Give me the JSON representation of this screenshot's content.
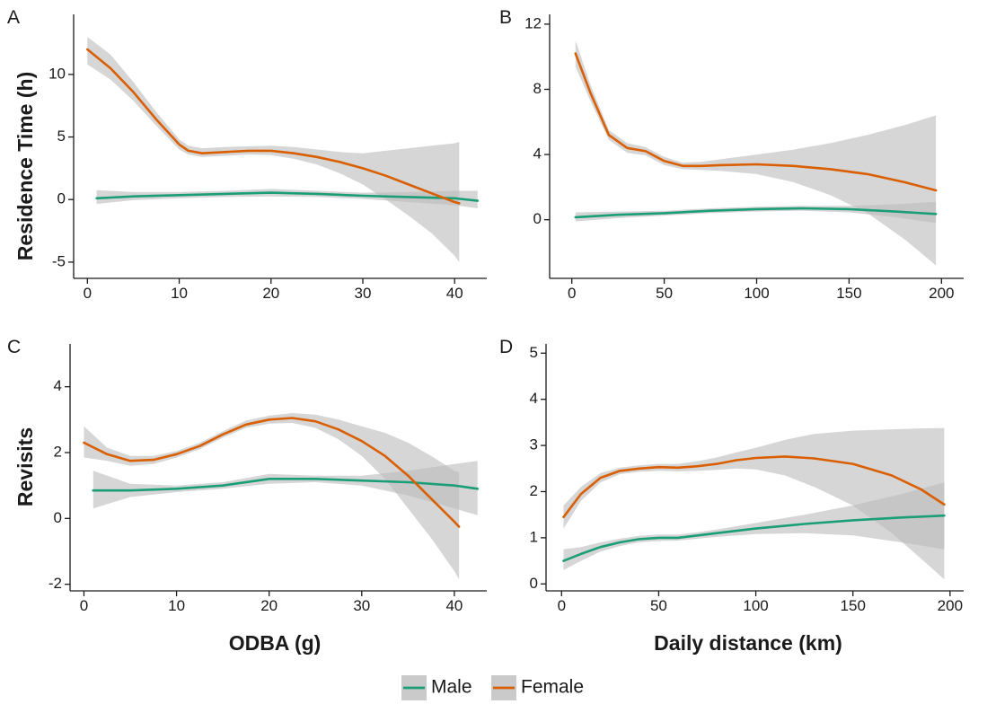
{
  "colors": {
    "male": "#1b9e77",
    "female": "#d95f02",
    "band": "#bdbdbd"
  },
  "legend": {
    "entries": [
      {
        "label": "Male",
        "color": "#1b9e77"
      },
      {
        "label": "Female",
        "color": "#d95f02"
      }
    ]
  },
  "labels": {
    "ylabel_top": "Residence Time (h)",
    "ylabel_bottom": "Revisits",
    "xlabel_left": "ODBA (g)",
    "xlabel_right": "Daily distance (km)"
  },
  "chart_data": [
    {
      "type": "line",
      "panel": "A",
      "xlim": [
        -1.5,
        43.5
      ],
      "ylim": [
        -6.3,
        14.8
      ],
      "xticks": [
        0,
        10,
        20,
        30,
        40
      ],
      "yticks": [
        -5,
        0,
        5,
        10
      ],
      "series": [
        {
          "name": "Male",
          "color": "#1b9e77",
          "x": [
            1,
            5,
            10,
            15,
            20,
            25,
            30,
            35,
            40,
            42.5
          ],
          "y": [
            0.1,
            0.25,
            0.35,
            0.45,
            0.55,
            0.45,
            0.3,
            0.2,
            0.1,
            -0.1
          ],
          "lower": [
            -0.35,
            -0.05,
            0.1,
            0.2,
            0.25,
            0.2,
            0.05,
            -0.2,
            -0.45,
            -0.7
          ],
          "upper": [
            0.75,
            0.6,
            0.6,
            0.7,
            0.85,
            0.7,
            0.55,
            0.6,
            0.7,
            0.7
          ]
        },
        {
          "name": "Female",
          "color": "#d95f02",
          "x": [
            0,
            2.5,
            5,
            7.5,
            10,
            11,
            12.5,
            15,
            17.5,
            20,
            22.5,
            25,
            27.5,
            30,
            32.5,
            35,
            37.5,
            40,
            40.5
          ],
          "y": [
            12,
            10.5,
            8.6,
            6.4,
            4.4,
            3.9,
            3.7,
            3.8,
            3.9,
            3.9,
            3.7,
            3.4,
            3.0,
            2.5,
            1.9,
            1.2,
            0.5,
            -0.2,
            -0.3
          ],
          "lower": [
            10.8,
            9.6,
            7.9,
            5.9,
            4.0,
            3.6,
            3.4,
            3.5,
            3.6,
            3.55,
            3.25,
            2.8,
            2.1,
            1.2,
            0.0,
            -1.3,
            -2.7,
            -4.5,
            -5.0
          ],
          "upper": [
            13.0,
            11.6,
            9.4,
            7.0,
            4.8,
            4.3,
            4.1,
            4.2,
            4.25,
            4.3,
            4.2,
            4.0,
            3.8,
            3.7,
            3.9,
            4.1,
            4.3,
            4.5,
            4.6
          ]
        }
      ]
    },
    {
      "type": "line",
      "panel": "B",
      "xlim": [
        -12,
        212
      ],
      "ylim": [
        -3.6,
        12.6
      ],
      "xticks": [
        0,
        50,
        100,
        150,
        200
      ],
      "yticks": [
        0,
        4,
        8,
        12
      ],
      "series": [
        {
          "name": "Male",
          "color": "#1b9e77",
          "x": [
            2,
            25,
            50,
            75,
            100,
            125,
            150,
            175,
            197
          ],
          "y": [
            0.15,
            0.3,
            0.4,
            0.55,
            0.65,
            0.7,
            0.65,
            0.5,
            0.35
          ],
          "lower": [
            -0.1,
            0.1,
            0.25,
            0.4,
            0.5,
            0.55,
            0.45,
            0.15,
            -0.2
          ],
          "upper": [
            0.45,
            0.5,
            0.55,
            0.7,
            0.8,
            0.85,
            0.85,
            0.95,
            1.1
          ]
        },
        {
          "name": "Female",
          "color": "#d95f02",
          "x": [
            2,
            10,
            20,
            30,
            40,
            50,
            60,
            70,
            80,
            100,
            120,
            140,
            160,
            180,
            197
          ],
          "y": [
            10.2,
            7.8,
            5.2,
            4.4,
            4.2,
            3.6,
            3.3,
            3.3,
            3.35,
            3.4,
            3.3,
            3.1,
            2.8,
            2.3,
            1.8
          ],
          "lower": [
            9.4,
            7.3,
            4.9,
            4.1,
            3.95,
            3.35,
            3.1,
            3.05,
            3.0,
            2.8,
            2.3,
            1.5,
            0.4,
            -1.2,
            -2.8
          ],
          "upper": [
            11.0,
            8.3,
            5.5,
            4.7,
            4.45,
            3.85,
            3.5,
            3.55,
            3.7,
            4.0,
            4.3,
            4.7,
            5.2,
            5.8,
            6.4
          ]
        }
      ]
    },
    {
      "type": "line",
      "panel": "C",
      "xlim": [
        -1.5,
        43.5
      ],
      "ylim": [
        -2.2,
        5.3
      ],
      "xticks": [
        0,
        10,
        20,
        30,
        40
      ],
      "yticks": [
        -2,
        0,
        2,
        4
      ],
      "series": [
        {
          "name": "Male",
          "color": "#1b9e77",
          "x": [
            1,
            5,
            10,
            15,
            20,
            25,
            30,
            35,
            40,
            42.5
          ],
          "y": [
            0.85,
            0.85,
            0.9,
            1.0,
            1.2,
            1.2,
            1.15,
            1.1,
            1.0,
            0.9
          ],
          "lower": [
            0.3,
            0.65,
            0.8,
            0.9,
            1.05,
            1.1,
            1.0,
            0.7,
            0.3,
            0.1
          ],
          "upper": [
            1.45,
            1.05,
            1.0,
            1.1,
            1.35,
            1.3,
            1.3,
            1.45,
            1.65,
            1.75
          ]
        },
        {
          "name": "Female",
          "color": "#d95f02",
          "x": [
            0,
            2.5,
            5,
            7.5,
            10,
            12.5,
            15,
            17.5,
            20,
            22.5,
            25,
            27.5,
            30,
            32.5,
            35,
            37.5,
            40,
            40.5
          ],
          "y": [
            2.3,
            1.95,
            1.75,
            1.78,
            1.95,
            2.2,
            2.55,
            2.85,
            3.0,
            3.05,
            2.95,
            2.7,
            2.35,
            1.9,
            1.3,
            0.6,
            -0.1,
            -0.25
          ],
          "lower": [
            1.85,
            1.75,
            1.6,
            1.65,
            1.85,
            2.1,
            2.45,
            2.75,
            2.88,
            2.9,
            2.75,
            2.4,
            1.9,
            1.2,
            0.3,
            -0.6,
            -1.6,
            -1.85
          ],
          "upper": [
            2.8,
            2.15,
            1.9,
            1.9,
            2.05,
            2.3,
            2.65,
            2.97,
            3.12,
            3.2,
            3.15,
            3.0,
            2.8,
            2.6,
            2.3,
            1.9,
            1.45,
            1.4
          ]
        }
      ]
    },
    {
      "type": "line",
      "panel": "D",
      "xlim": [
        -8,
        207
      ],
      "ylim": [
        -0.15,
        5.2
      ],
      "xticks": [
        0,
        50,
        100,
        150,
        200
      ],
      "yticks": [
        0,
        1,
        2,
        3,
        4,
        5
      ],
      "series": [
        {
          "name": "Male",
          "color": "#1b9e77",
          "x": [
            1,
            10,
            20,
            30,
            40,
            50,
            60,
            70,
            80,
            100,
            125,
            150,
            175,
            197
          ],
          "y": [
            0.5,
            0.65,
            0.8,
            0.9,
            0.97,
            1.0,
            1.0,
            1.05,
            1.1,
            1.2,
            1.3,
            1.38,
            1.44,
            1.48
          ],
          "lower": [
            0.3,
            0.5,
            0.7,
            0.82,
            0.9,
            0.93,
            0.94,
            0.98,
            1.02,
            1.08,
            1.1,
            1.05,
            0.9,
            0.75
          ],
          "upper": [
            0.75,
            0.8,
            0.9,
            0.98,
            1.04,
            1.07,
            1.07,
            1.12,
            1.18,
            1.32,
            1.5,
            1.7,
            1.95,
            2.2
          ]
        },
        {
          "name": "Female",
          "color": "#d95f02",
          "x": [
            1,
            10,
            20,
            30,
            40,
            50,
            60,
            70,
            80,
            90,
            100,
            115,
            130,
            150,
            170,
            185,
            197
          ],
          "y": [
            1.45,
            1.95,
            2.3,
            2.45,
            2.5,
            2.53,
            2.52,
            2.55,
            2.6,
            2.68,
            2.73,
            2.76,
            2.72,
            2.6,
            2.35,
            2.05,
            1.72
          ],
          "lower": [
            1.2,
            1.8,
            2.2,
            2.38,
            2.43,
            2.45,
            2.44,
            2.45,
            2.47,
            2.5,
            2.48,
            2.35,
            2.1,
            1.7,
            1.1,
            0.55,
            0.1
          ],
          "upper": [
            1.7,
            2.1,
            2.4,
            2.52,
            2.57,
            2.6,
            2.6,
            2.66,
            2.74,
            2.85,
            2.95,
            3.12,
            3.25,
            3.32,
            3.35,
            3.37,
            3.38
          ]
        }
      ]
    }
  ]
}
